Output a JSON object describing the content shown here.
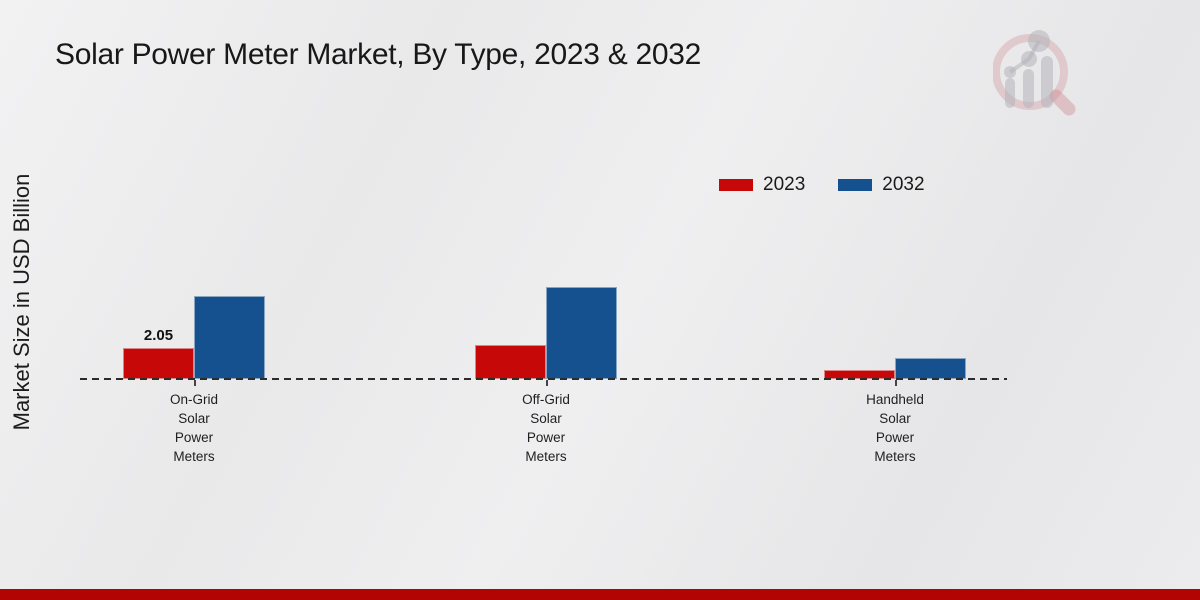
{
  "page": {
    "title": "Solar Power Meter Market, By Type, 2023 & 2032",
    "ylabel": "Market Size in USD Billion",
    "footer_color": "#b30404",
    "logo": "mrfr-magnifier-barchart-watermark"
  },
  "chart_data": {
    "type": "bar",
    "title": "Solar Power Meter Market, By Type, 2023 & 2032",
    "xlabel": "",
    "ylabel": "Market Size in USD Billion",
    "categories": [
      "On-Grid Solar Power Meters",
      "Off-Grid Solar Power Meters",
      "Handheld Solar Power Meters"
    ],
    "series": [
      {
        "name": "2023",
        "color": "#c70808",
        "values": [
          2.05,
          2.25,
          0.6
        ],
        "value_labels": [
          "2.05",
          "",
          ""
        ]
      },
      {
        "name": "2032",
        "color": "#15508f",
        "values": [
          5.5,
          6.1,
          1.4
        ],
        "value_labels": [
          "",
          "",
          ""
        ]
      }
    ],
    "ylim": [
      0,
      7
    ],
    "grid": false,
    "legend_position": "upper-right",
    "baseline_style": "dashed",
    "unit": "USD Billion"
  }
}
